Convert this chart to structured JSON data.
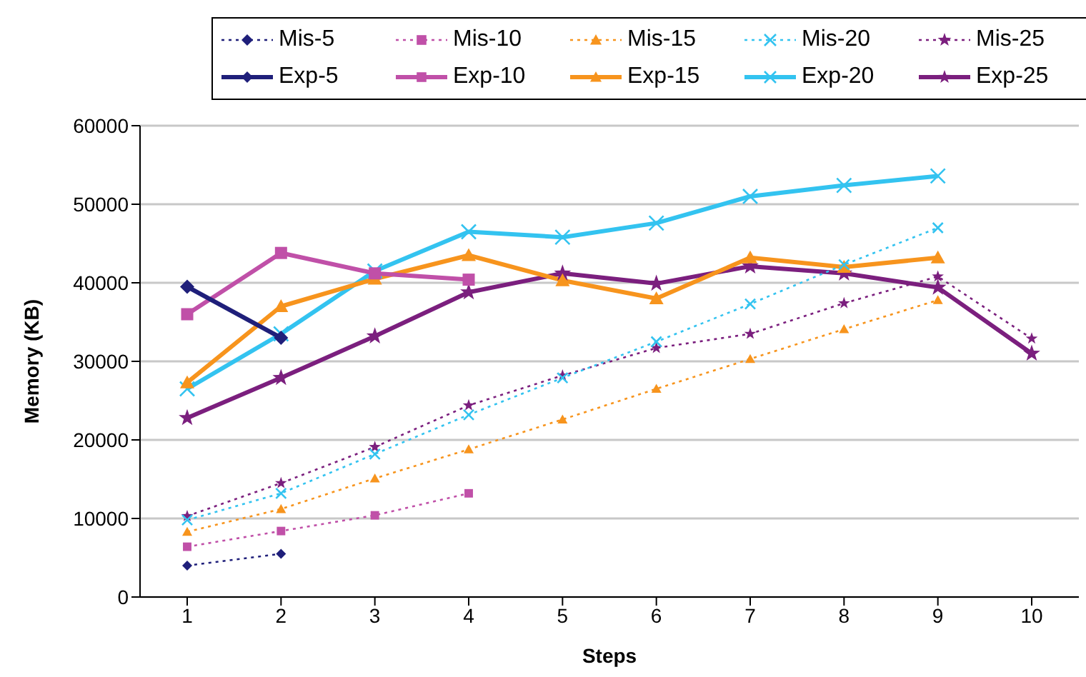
{
  "chart_data": {
    "type": "line",
    "xlabel": "Steps",
    "ylabel": "Memory (KB)",
    "categories": [
      "1",
      "2",
      "3",
      "4",
      "5",
      "6",
      "7",
      "8",
      "9",
      "10"
    ],
    "ylim": [
      0,
      60000
    ],
    "yticks": [
      0,
      10000,
      20000,
      30000,
      40000,
      50000,
      60000
    ],
    "grid": "y",
    "legend": "top",
    "series": [
      {
        "name": "Mis-5",
        "color": "#1f1f7a",
        "marker": "diamond",
        "line_style": "dotted",
        "values": [
          4000,
          5500,
          null,
          null,
          null,
          null,
          null,
          null,
          null,
          null
        ]
      },
      {
        "name": "Mis-10",
        "color": "#c050a8",
        "marker": "square",
        "line_style": "dotted",
        "values": [
          6400,
          8400,
          10400,
          13200,
          null,
          null,
          null,
          null,
          null,
          null
        ]
      },
      {
        "name": "Mis-15",
        "color": "#f7941d",
        "marker": "triangle",
        "line_style": "dotted",
        "values": [
          8300,
          11200,
          15100,
          18800,
          22600,
          26500,
          30300,
          34100,
          37800,
          null
        ]
      },
      {
        "name": "Mis-20",
        "color": "#33c3f0",
        "marker": "cross",
        "line_style": "dotted",
        "values": [
          9800,
          13200,
          18200,
          23200,
          27900,
          32500,
          37300,
          42300,
          47000,
          null
        ]
      },
      {
        "name": "Mis-25",
        "color": "#7b1f7e",
        "marker": "star",
        "line_style": "dotted",
        "values": [
          10300,
          14500,
          19100,
          24400,
          28200,
          31700,
          33500,
          37400,
          40800,
          32900
        ]
      },
      {
        "name": "Exp-5",
        "color": "#1f1f7a",
        "marker": "diamond",
        "line_style": "solid",
        "values": [
          39500,
          33000,
          null,
          null,
          null,
          null,
          null,
          null,
          null,
          null
        ]
      },
      {
        "name": "Exp-10",
        "color": "#c050a8",
        "marker": "square",
        "line_style": "solid",
        "values": [
          36000,
          43800,
          41200,
          40400,
          null,
          null,
          null,
          null,
          null,
          null
        ]
      },
      {
        "name": "Exp-15",
        "color": "#f7941d",
        "marker": "triangle",
        "line_style": "solid",
        "values": [
          27300,
          37000,
          40500,
          43500,
          40300,
          38000,
          43200,
          42000,
          43200,
          null
        ]
      },
      {
        "name": "Exp-20",
        "color": "#33c3f0",
        "marker": "cross",
        "line_style": "solid",
        "values": [
          26500,
          33500,
          41500,
          46500,
          45800,
          47600,
          51000,
          52400,
          53600,
          null
        ]
      },
      {
        "name": "Exp-25",
        "color": "#7b1f7e",
        "marker": "star",
        "line_style": "solid",
        "values": [
          22800,
          27900,
          33200,
          38800,
          41200,
          39900,
          42100,
          41200,
          39400,
          31000
        ]
      }
    ]
  }
}
